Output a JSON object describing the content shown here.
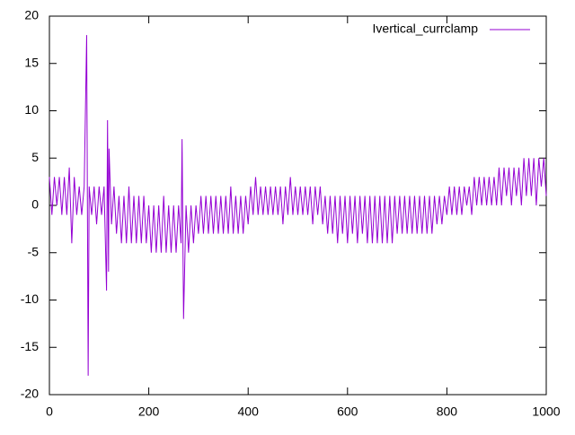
{
  "chart_data": {
    "type": "line",
    "x": [
      0,
      5,
      10,
      15,
      20,
      25,
      30,
      35,
      40,
      45,
      50,
      55,
      60,
      65,
      70,
      75,
      78,
      80,
      85,
      90,
      95,
      100,
      105,
      110,
      115,
      117,
      119,
      120,
      125,
      130,
      135,
      140,
      145,
      150,
      155,
      160,
      165,
      170,
      175,
      180,
      185,
      190,
      195,
      200,
      205,
      210,
      215,
      220,
      225,
      230,
      235,
      240,
      245,
      250,
      255,
      260,
      265,
      267,
      270,
      275,
      280,
      285,
      290,
      295,
      300,
      305,
      310,
      315,
      320,
      325,
      330,
      335,
      340,
      345,
      350,
      355,
      360,
      365,
      370,
      375,
      380,
      385,
      390,
      395,
      400,
      405,
      410,
      415,
      420,
      425,
      430,
      435,
      440,
      445,
      450,
      455,
      460,
      465,
      470,
      475,
      480,
      485,
      490,
      495,
      500,
      505,
      510,
      515,
      520,
      525,
      530,
      535,
      540,
      545,
      550,
      555,
      560,
      565,
      570,
      575,
      580,
      585,
      590,
      595,
      600,
      605,
      610,
      615,
      620,
      625,
      630,
      635,
      640,
      645,
      650,
      655,
      660,
      665,
      670,
      675,
      680,
      685,
      690,
      695,
      700,
      705,
      710,
      715,
      720,
      725,
      730,
      735,
      740,
      745,
      750,
      755,
      760,
      765,
      770,
      775,
      780,
      785,
      790,
      795,
      800,
      805,
      810,
      815,
      820,
      825,
      830,
      835,
      840,
      845,
      850,
      855,
      860,
      865,
      870,
      875,
      880,
      885,
      890,
      895,
      900,
      905,
      910,
      915,
      920,
      925,
      930,
      935,
      940,
      945,
      950,
      955,
      960,
      965,
      970,
      975,
      980,
      985,
      990,
      995,
      1000
    ],
    "series": [
      {
        "name": "Ivertical_currclamp",
        "color": "#9400d3",
        "values": [
          3,
          -1,
          3,
          0,
          3,
          -1,
          3,
          -1,
          4,
          -4,
          3,
          -1,
          2,
          -1,
          2,
          18,
          -18,
          2,
          -1,
          2,
          -2,
          2,
          -1,
          2,
          -9,
          9,
          -7,
          6,
          -2,
          2,
          -3,
          1,
          -4,
          1,
          -4,
          2,
          -4,
          1,
          -4,
          1,
          -4,
          1,
          -4,
          0,
          -5,
          0,
          -5,
          0,
          -5,
          1,
          -5,
          0,
          -5,
          0,
          -5,
          0,
          -4,
          7,
          -12,
          0,
          -5,
          0,
          -4,
          0,
          -3,
          1,
          -3,
          1,
          -3,
          1,
          -3,
          1,
          -3,
          1,
          -3,
          1,
          -3,
          2,
          -3,
          1,
          -3,
          1,
          -3,
          1,
          -2,
          2,
          -1,
          3,
          -1,
          2,
          -1,
          2,
          -1,
          2,
          -1,
          2,
          -1,
          2,
          -2,
          2,
          -1,
          3,
          -1,
          2,
          -1,
          2,
          -1,
          2,
          -1,
          2,
          -2,
          2,
          -1,
          2,
          -2,
          1,
          -3,
          1,
          -3,
          1,
          -4,
          1,
          -3,
          1,
          -4,
          1,
          -3,
          1,
          -4,
          1,
          -3,
          1,
          -4,
          1,
          -4,
          1,
          -4,
          1,
          -4,
          1,
          -4,
          1,
          -4,
          1,
          -3,
          1,
          -3,
          1,
          -3,
          1,
          -3,
          1,
          -3,
          1,
          -3,
          1,
          -3,
          1,
          -3,
          1,
          -2,
          1,
          -2,
          1,
          -1,
          2,
          -1,
          2,
          -1,
          2,
          -1,
          2,
          0,
          2,
          -1,
          3,
          0,
          3,
          0,
          3,
          0,
          3,
          0,
          3,
          0,
          4,
          0,
          4,
          1,
          4,
          0,
          4,
          1,
          4,
          0,
          5,
          1,
          5,
          1,
          5,
          0,
          5,
          2,
          5,
          1
        ]
      }
    ],
    "xlim": [
      0,
      1000
    ],
    "xticks": [
      0,
      200,
      400,
      600,
      800,
      1000
    ],
    "ylim": [
      -20,
      20
    ],
    "yticks": [
      -20,
      -15,
      -10,
      -5,
      0,
      5,
      10,
      15,
      20
    ]
  }
}
